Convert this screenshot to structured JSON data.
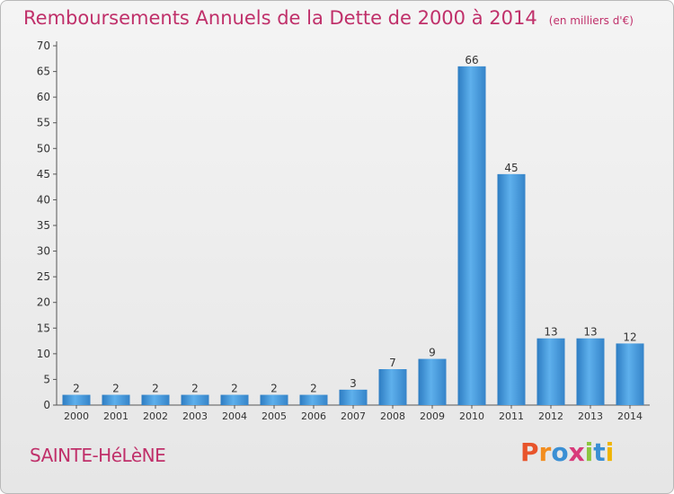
{
  "chart_data": {
    "type": "bar",
    "title": "Remboursements Annuels de la Dette de 2000 à 2014",
    "subtitle": "(en milliers d'€)",
    "categories": [
      "2000",
      "2001",
      "2002",
      "2003",
      "2004",
      "2005",
      "2006",
      "2007",
      "2008",
      "2009",
      "2010",
      "2011",
      "2012",
      "2013",
      "2014"
    ],
    "values": [
      2,
      2,
      2,
      2,
      2,
      2,
      2,
      3,
      7,
      9,
      66,
      45,
      13,
      13,
      12
    ],
    "ylim": [
      0,
      70
    ],
    "yticks": [
      0,
      5,
      10,
      15,
      20,
      25,
      30,
      35,
      40,
      45,
      50,
      55,
      60,
      65,
      70
    ],
    "grid": false,
    "xlabel": "",
    "ylabel": "",
    "bar_color": "#3a8fd4"
  },
  "footer": {
    "place": "SAINTE-HéLèNE",
    "logo": "Proxiti"
  },
  "colors": {
    "title": "#c0306a",
    "logo_letters": [
      "#e8542b",
      "#f28d1f",
      "#3a8fd4",
      "#d83a7a",
      "#8cc63f",
      "#3a8fd4",
      "#f0b400"
    ]
  }
}
